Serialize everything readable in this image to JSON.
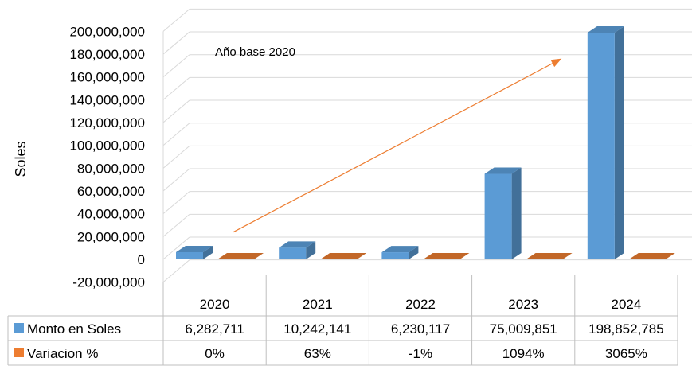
{
  "chart_data": {
    "type": "bar",
    "ylabel": "Soles",
    "ylim": [
      -20000000,
      200000000
    ],
    "ytick_step": 20000000,
    "yticks": [
      "-20,000,000",
      "0",
      "20,000,000",
      "40,000,000",
      "60,000,000",
      "80,000,000",
      "100,000,000",
      "120,000,000",
      "140,000,000",
      "160,000,000",
      "180,000,000",
      "200,000,000"
    ],
    "grid": true,
    "categories": [
      "2020",
      "2021",
      "2022",
      "2023",
      "2024"
    ],
    "series": [
      {
        "name": "Monto en Soles",
        "color": "#5B9BD5",
        "values": [
          6282711,
          10242141,
          6230117,
          75009851,
          198852785
        ],
        "labels": [
          "6,282,711",
          "10,242,141",
          "6,230,117",
          "75,009,851",
          "198,852,785"
        ]
      },
      {
        "name": "Variacion %",
        "color": "#ED7D31",
        "values": [
          0,
          63,
          -1,
          1094,
          3065
        ],
        "labels": [
          "0%",
          "63%",
          "-1%",
          "1094%",
          "3065%"
        ]
      }
    ],
    "annotation": {
      "text": "Año base 2020",
      "arrow_from": [
        "2020",
        10000000
      ],
      "arrow_to": [
        "2024",
        172000000
      ],
      "color": "#ED7D31"
    },
    "data_table": true
  }
}
